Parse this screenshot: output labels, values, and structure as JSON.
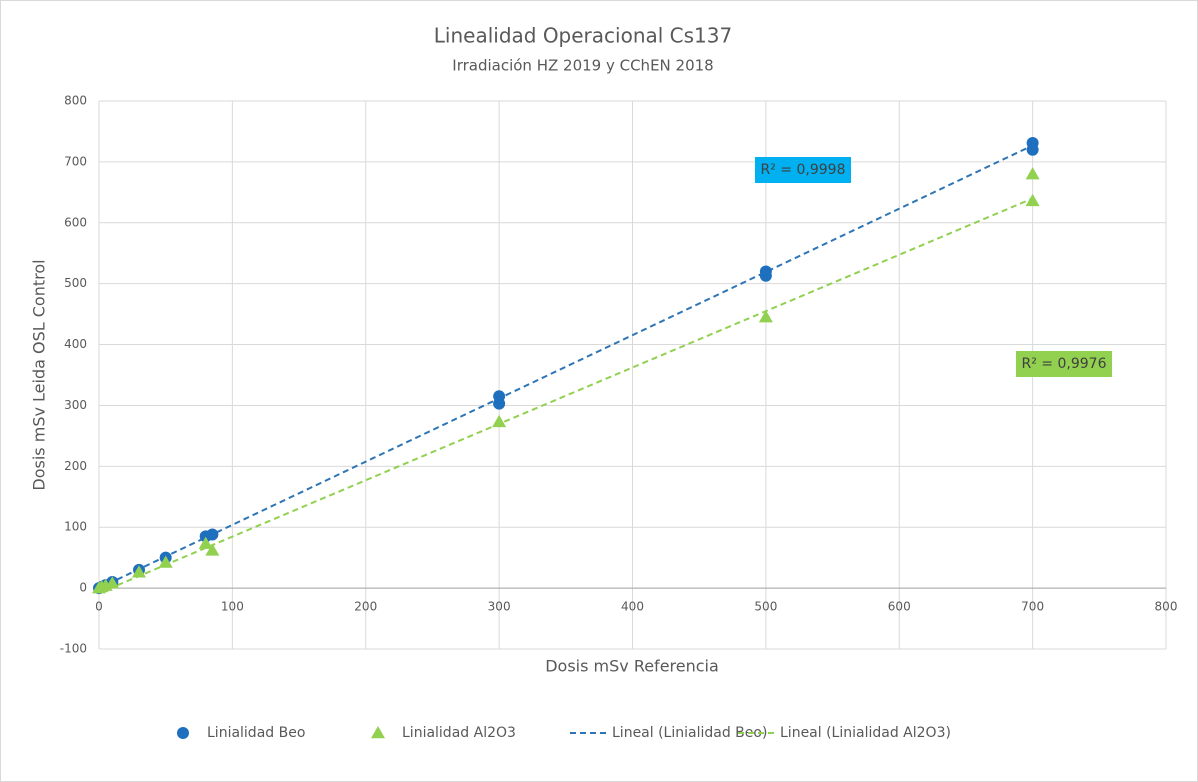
{
  "chart_data": {
    "type": "scatter",
    "title": "Linealidad Operacional Cs137",
    "subtitle": "Irradiación HZ 2019 y CChEN 2018",
    "x_label": "Dosis mSv Referencia",
    "y_label": "Dosis mSv Leida OSL Control",
    "xlim": [
      0,
      800
    ],
    "xticks": [
      0,
      100,
      200,
      300,
      400,
      500,
      600,
      700,
      800
    ],
    "ylim": [
      -100,
      800
    ],
    "yticks": [
      -100,
      0,
      100,
      200,
      300,
      400,
      500,
      600,
      700,
      800
    ],
    "grid": true,
    "legend": "bottom",
    "series": [
      {
        "name": "Linialidad Beo",
        "color": "#1f6fbf",
        "marker": "circle",
        "x": [
          0,
          2,
          5,
          10,
          30,
          50,
          80,
          85,
          300,
          300,
          500,
          500,
          700,
          700
        ],
        "values": [
          0,
          2,
          5,
          10,
          30,
          50,
          85,
          88,
          303,
          315,
          513,
          520,
          720,
          731
        ]
      },
      {
        "name": "Linialidad Al2O3",
        "color": "#92d050",
        "marker": "triangle",
        "x": [
          0,
          2,
          5,
          10,
          30,
          50,
          80,
          85,
          300,
          500,
          700,
          700
        ],
        "values": [
          0,
          2,
          4,
          8,
          26,
          42,
          73,
          62,
          273,
          445,
          680,
          636
        ]
      },
      {
        "name": "Lineal (Linialidad Beo)",
        "color": "#2e75b6",
        "marker": "dashed",
        "x": [
          0,
          700
        ],
        "values": [
          0,
          727
        ]
      },
      {
        "name": "Lineal (Linialidad Al2O3)",
        "color": "#92d050",
        "marker": "dashed",
        "x": [
          0,
          700
        ],
        "values": [
          -8,
          640
        ]
      }
    ],
    "annotations": [
      {
        "text": "R² = 0,9998",
        "color": "#00b0f0"
      },
      {
        "text": "R² = 0,9976",
        "color": "#92d050"
      }
    ]
  }
}
